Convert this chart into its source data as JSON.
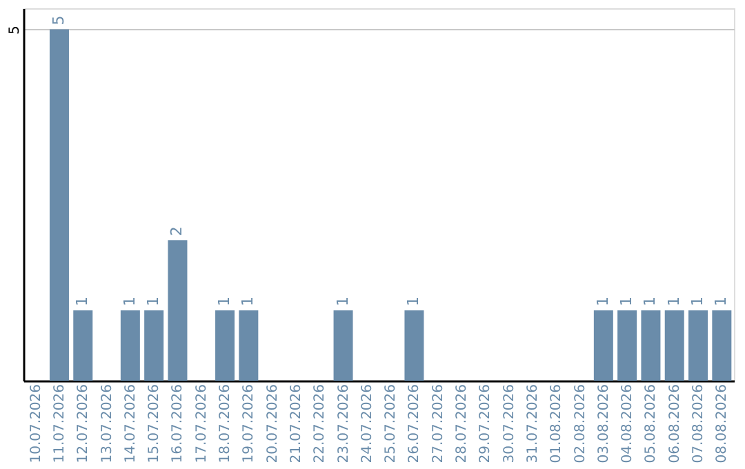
{
  "chart_data": {
    "type": "bar",
    "categories": [
      "10.07.2026",
      "11.07.2026",
      "12.07.2026",
      "13.07.2026",
      "14.07.2026",
      "15.07.2026",
      "16.07.2026",
      "17.07.2026",
      "18.07.2026",
      "19.07.2026",
      "20.07.2026",
      "21.07.2026",
      "22.07.2026",
      "23.07.2026",
      "24.07.2026",
      "25.07.2026",
      "26.07.2026",
      "27.07.2026",
      "28.07.2026",
      "29.07.2026",
      "30.07.2026",
      "31.07.2026",
      "01.08.2026",
      "02.08.2026",
      "03.08.2026",
      "04.08.2026",
      "05.08.2026",
      "06.08.2026",
      "07.08.2026",
      "08.08.2026"
    ],
    "values": [
      null,
      5,
      1,
      null,
      1,
      1,
      2,
      null,
      1,
      1,
      null,
      null,
      null,
      1,
      null,
      null,
      1,
      null,
      null,
      null,
      null,
      null,
      null,
      null,
      1,
      1,
      1,
      1,
      1,
      1
    ],
    "color": "#6a8caa",
    "ylim": [
      0,
      5.3
    ],
    "yticks": [
      5
    ],
    "grid": "y",
    "data_labels": true
  }
}
